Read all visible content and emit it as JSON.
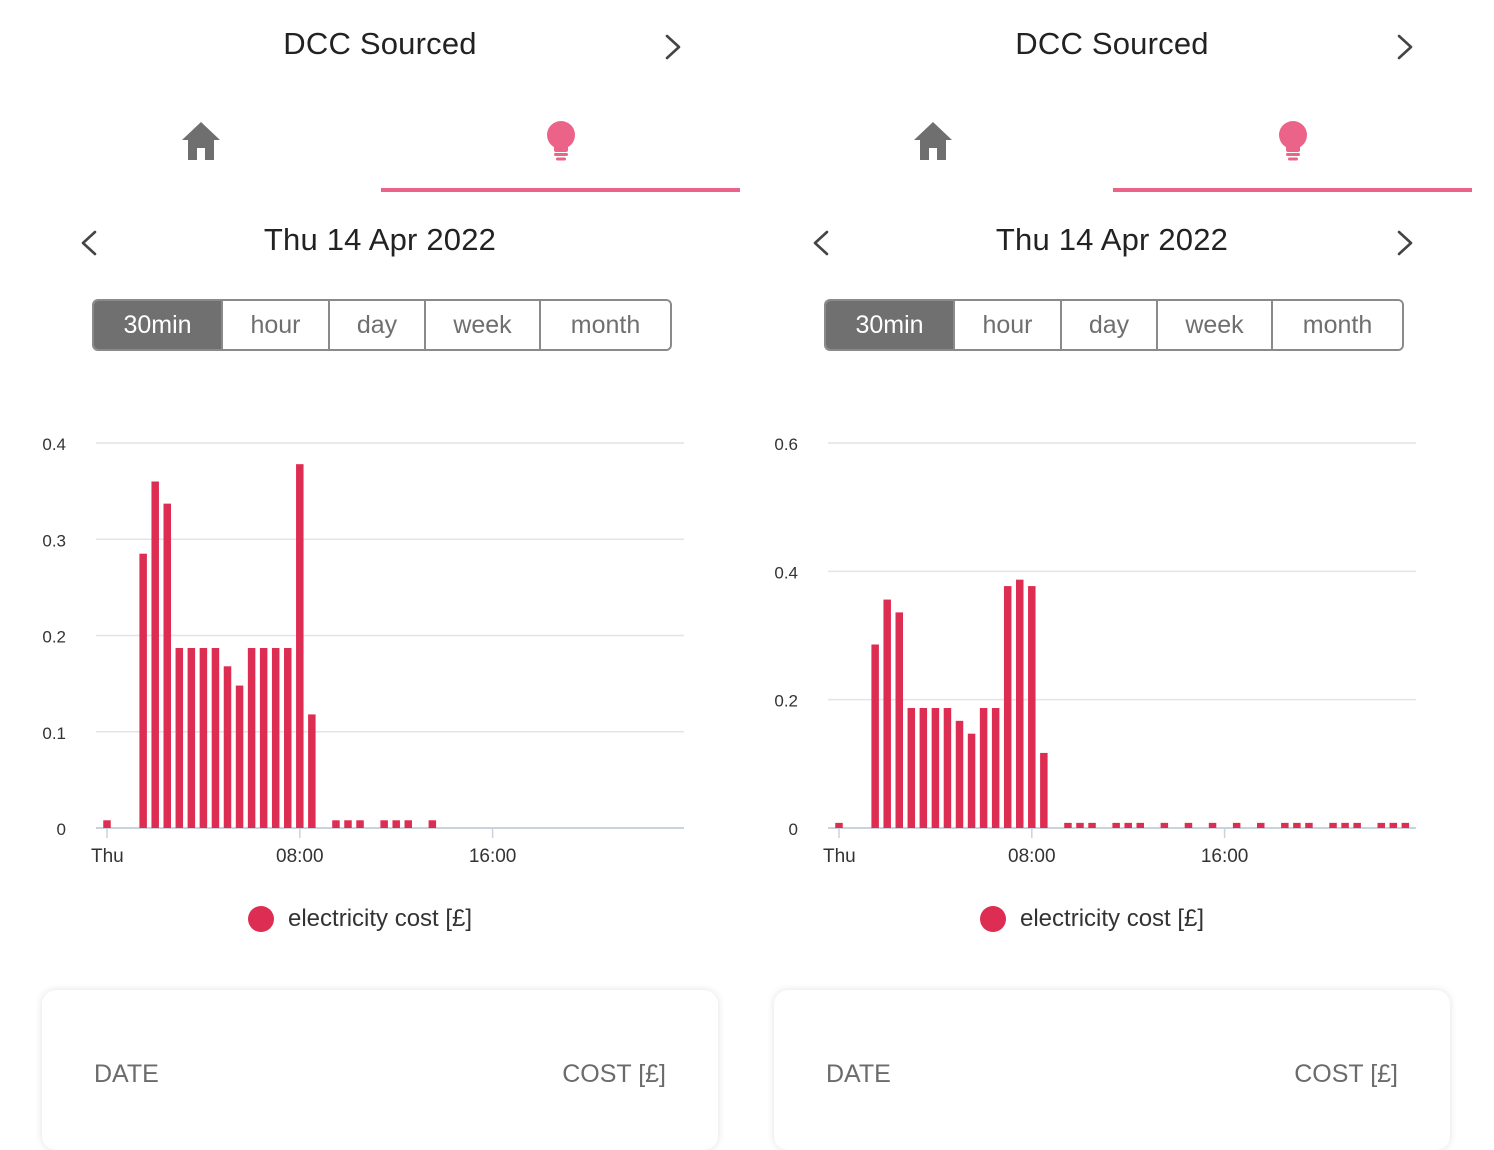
{
  "colors": {
    "accent": "#ec6389",
    "bar": "#de2d52",
    "icon_gray": "#6f6f6f",
    "segment_active_bg": "#707070"
  },
  "panels": [
    {
      "title": "DCC Sourced",
      "tabs": [
        {
          "icon": "home-icon",
          "selected": false
        },
        {
          "icon": "lightbulb-icon",
          "selected": true
        }
      ],
      "date": "Thu 14 Apr 2022",
      "periods": [
        "30min",
        "hour",
        "day",
        "week",
        "month"
      ],
      "active_period": "30min",
      "legend_label": "electricity cost [£]",
      "table_headers": {
        "date": "DATE",
        "cost": "COST [£]"
      }
    },
    {
      "title": "DCC Sourced",
      "tabs": [
        {
          "icon": "home-icon",
          "selected": false
        },
        {
          "icon": "lightbulb-icon",
          "selected": true
        }
      ],
      "date": "Thu 14 Apr 2022",
      "periods": [
        "30min",
        "hour",
        "day",
        "week",
        "month"
      ],
      "active_period": "30min",
      "legend_label": "electricity cost [£]",
      "table_headers": {
        "date": "DATE",
        "cost": "COST [£]"
      }
    }
  ],
  "chart_data": [
    {
      "type": "bar",
      "x_unit": "time of day (30-minute slots)",
      "x": [
        "00:00",
        "00:30",
        "01:00",
        "01:30",
        "02:00",
        "02:30",
        "03:00",
        "03:30",
        "04:00",
        "04:30",
        "05:00",
        "05:30",
        "06:00",
        "06:30",
        "07:00",
        "07:30",
        "08:00",
        "08:30",
        "09:00",
        "09:30",
        "10:00",
        "10:30",
        "11:00",
        "11:30",
        "12:00",
        "12:30",
        "13:00",
        "13:30"
      ],
      "x_ticks": [
        "Thu",
        "08:00",
        "16:00"
      ],
      "y_ticks": [
        "0",
        "0.1",
        "0.2",
        "0.3",
        "0.4"
      ],
      "ylim": [
        0,
        0.4
      ],
      "series": [
        {
          "name": "electricity cost [£]",
          "values": [
            0.008,
            0,
            0,
            0.285,
            0.36,
            0.337,
            0.187,
            0.187,
            0.187,
            0.187,
            0.168,
            0.148,
            0.187,
            0.187,
            0.187,
            0.187,
            0.378,
            0.118,
            0,
            0.008,
            0.008,
            0.008,
            0,
            0.008,
            0.008,
            0.008,
            0,
            0.008
          ]
        }
      ],
      "grid": true,
      "legend": "bottom-center"
    },
    {
      "type": "bar",
      "x_unit": "time of day (30-minute slots)",
      "x": [
        "00:00",
        "00:30",
        "01:00",
        "01:30",
        "02:00",
        "02:30",
        "03:00",
        "03:30",
        "04:00",
        "04:30",
        "05:00",
        "05:30",
        "06:00",
        "06:30",
        "07:00",
        "07:30",
        "08:00",
        "08:30",
        "09:00",
        "09:30",
        "10:00",
        "10:30",
        "11:00",
        "11:30",
        "12:00",
        "12:30",
        "13:00",
        "13:30",
        "14:00",
        "14:30",
        "15:00",
        "15:30",
        "16:00",
        "16:30",
        "17:00",
        "17:30",
        "18:00",
        "18:30",
        "19:00",
        "19:30",
        "20:00",
        "20:30",
        "21:00",
        "21:30",
        "22:00",
        "22:30",
        "23:00",
        "23:30"
      ],
      "x_ticks": [
        "Thu",
        "08:00",
        "16:00"
      ],
      "y_ticks": [
        "0",
        "0.2",
        "0.4",
        "0.6"
      ],
      "ylim": [
        0,
        0.6
      ],
      "series": [
        {
          "name": "electricity cost [£]",
          "values": [
            0.008,
            0,
            0,
            0.286,
            0.356,
            0.336,
            0.187,
            0.187,
            0.187,
            0.187,
            0.167,
            0.147,
            0.187,
            0.187,
            0.377,
            0.387,
            0.377,
            0.117,
            0,
            0.008,
            0.008,
            0.008,
            0,
            0.008,
            0.008,
            0.008,
            0,
            0.008,
            0,
            0.008,
            0,
            0.008,
            0,
            0.008,
            0,
            0.008,
            0,
            0.008,
            0.008,
            0.008,
            0,
            0.008,
            0.008,
            0.008,
            0,
            0.008,
            0.008,
            0.008
          ]
        }
      ],
      "grid": true,
      "legend": "bottom-center"
    }
  ]
}
